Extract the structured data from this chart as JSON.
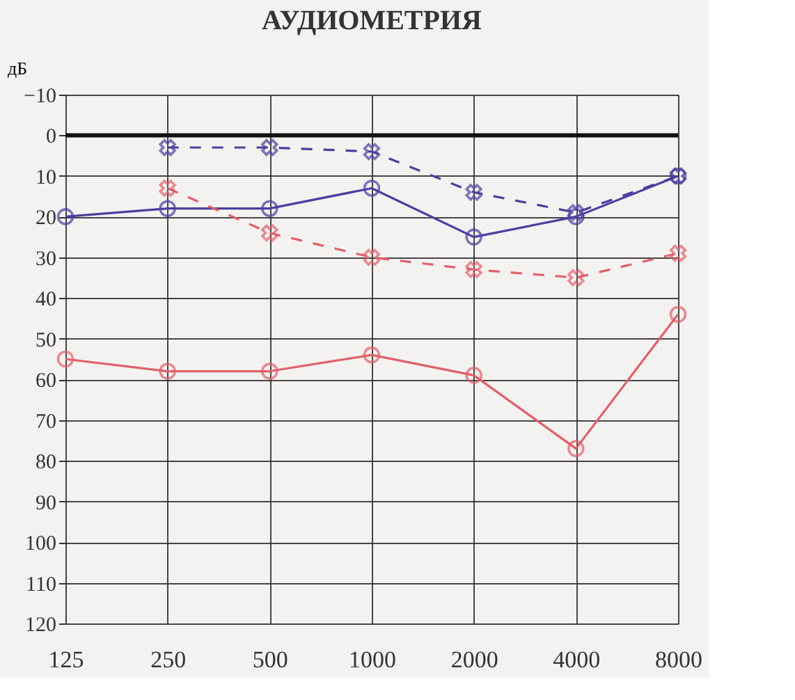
{
  "chart_data": {
    "type": "line",
    "title": "АУДИОМЕТРИЯ",
    "ylabel": "дБ",
    "categories": [
      "125",
      "250",
      "500",
      "1000",
      "2000",
      "4000",
      "8000"
    ],
    "series": [
      {
        "color": "#4a3fa0",
        "marker": "circle",
        "line_style": "solid",
        "values": [
          20,
          18,
          18,
          13,
          25,
          20,
          10
        ]
      },
      {
        "color": "#4a3fa0",
        "marker": "cross",
        "line_style": "dashed",
        "values": [
          null,
          3,
          3,
          4,
          14,
          19,
          10
        ]
      },
      {
        "color": "#e0606a",
        "marker": "cross",
        "line_style": "dashed",
        "values": [
          null,
          13,
          24,
          30,
          33,
          35,
          29
        ]
      },
      {
        "color": "#e0606a",
        "marker": "circle",
        "line_style": "solid",
        "values": [
          55,
          58,
          58,
          54,
          59,
          77,
          44
        ]
      }
    ],
    "ylim": [
      120,
      -10
    ],
    "yticks": [
      -10,
      0,
      10,
      20,
      30,
      40,
      50,
      60,
      70,
      80,
      90,
      100,
      110,
      120
    ],
    "ref_lines": [
      {
        "axis": "y",
        "value": 0,
        "color": "#111111"
      }
    ],
    "grid": true
  }
}
